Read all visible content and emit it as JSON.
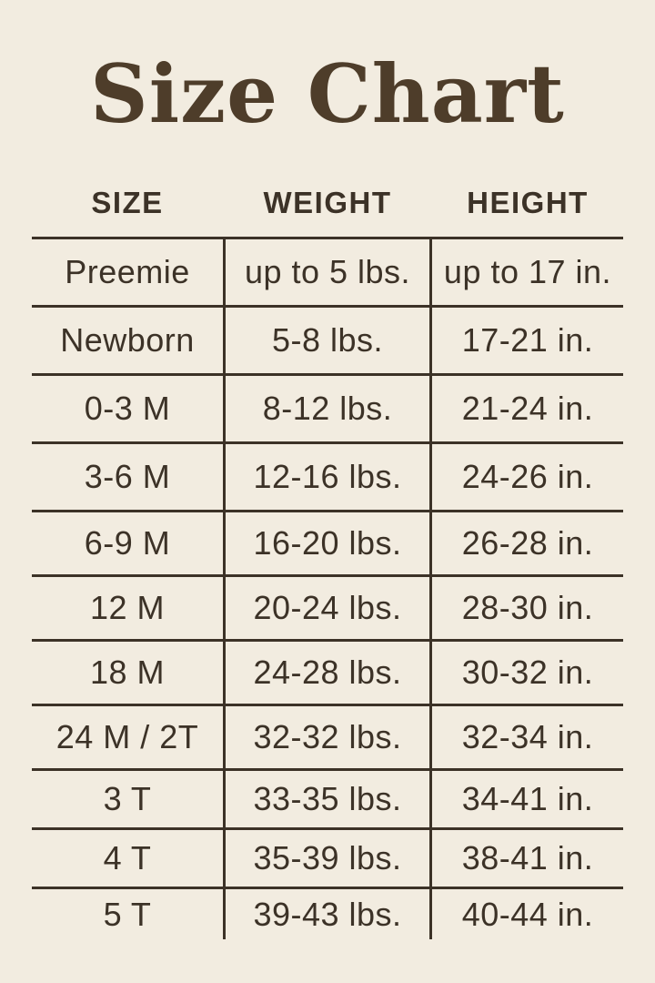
{
  "title": "Size Chart",
  "colors": {
    "background": "#f2ece0",
    "ink": "#3c3227",
    "title": "#4e3d2a"
  },
  "chart_data": {
    "type": "table",
    "title": "Size Chart",
    "columns": [
      "SIZE",
      "WEIGHT",
      "HEIGHT"
    ],
    "rows": [
      [
        "Preemie",
        "up to 5 lbs.",
        "up to 17 in."
      ],
      [
        "Newborn",
        "5-8 lbs.",
        "17-21 in."
      ],
      [
        "0-3 M",
        "8-12 lbs.",
        "21-24 in."
      ],
      [
        "3-6 M",
        "12-16 lbs.",
        "24-26 in."
      ],
      [
        "6-9 M",
        "16-20 lbs.",
        "26-28 in."
      ],
      [
        "12 M",
        "20-24 lbs.",
        "28-30 in."
      ],
      [
        "18 M",
        "24-28 lbs.",
        "30-32 in."
      ],
      [
        "24 M / 2T",
        "32-32 lbs.",
        "32-34 in."
      ],
      [
        "3 T",
        "33-35 lbs.",
        "34-41 in."
      ],
      [
        "4 T",
        "35-39 lbs.",
        "38-41 in."
      ],
      [
        "5 T",
        "39-43 lbs.",
        "40-44 in."
      ]
    ]
  }
}
